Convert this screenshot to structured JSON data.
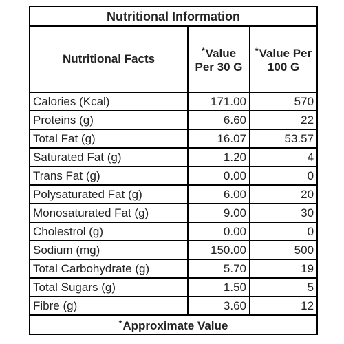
{
  "table": {
    "title": "Nutritional Information",
    "header": {
      "facts_label": "Nutritional Facts",
      "col2_marker": "*",
      "col2_label": "Value Per 30 G",
      "col3_marker": "*",
      "col3_label": "Value Per 100 G"
    },
    "rows": [
      {
        "name": "Calories (Kcal)",
        "per30": "171.00",
        "per100": "570"
      },
      {
        "name": "Proteins (g)",
        "per30": "6.60",
        "per100": "22"
      },
      {
        "name": "Total Fat (g)",
        "per30": "16.07",
        "per100": "53.57"
      },
      {
        "name": "Saturated Fat (g)",
        "per30": "1.20",
        "per100": "4"
      },
      {
        "name": "Trans Fat (g)",
        "per30": "0.00",
        "per100": "0"
      },
      {
        "name": "Polysaturated Fat (g)",
        "per30": "6.00",
        "per100": "20"
      },
      {
        "name": "Monosaturated Fat (g)",
        "per30": "9.00",
        "per100": "30"
      },
      {
        "name": "Cholestrol (g)",
        "per30": "0.00",
        "per100": "0"
      },
      {
        "name": "Sodium  (mg)",
        "per30": "150.00",
        "per100": "500"
      },
      {
        "name": "Total Carbohydrate (g)",
        "per30": "5.70",
        "per100": "19"
      },
      {
        "name": "Total Sugars (g)",
        "per30": "1.50",
        "per100": "5"
      },
      {
        "name": "Fibre (g)",
        "per30": "3.60",
        "per100": "12"
      }
    ],
    "footer": {
      "marker": "*",
      "text": "Approximate Value"
    }
  }
}
